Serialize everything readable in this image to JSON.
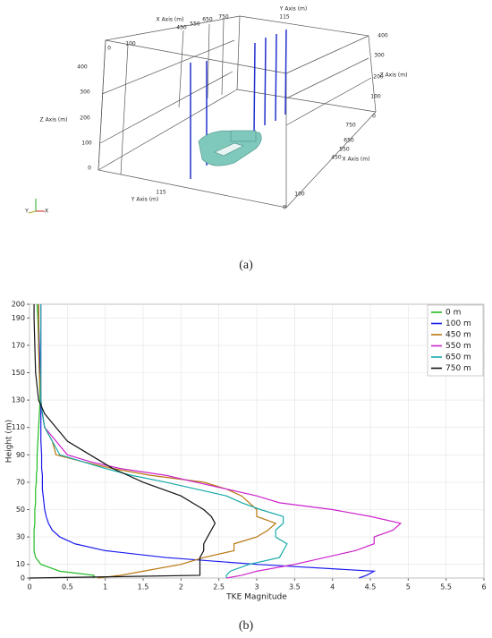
{
  "figure_a": {
    "caption": "(a)",
    "labels": [
      "Y Axis (m)",
      "115",
      "X Axis (m)",
      "450",
      "550",
      "650",
      "750",
      "0",
      "100",
      "400",
      "300",
      "Z Axis (m)",
      "200",
      "100",
      "0",
      "400",
      "300",
      "Z Axis (m)",
      "200",
      "100",
      "0",
      "750",
      "650",
      "550",
      "X Axis (m)",
      "450",
      "Y Axis (m)",
      "115",
      "100",
      "0",
      "Y",
      "X"
    ]
  },
  "chart_data": {
    "type": "line",
    "caption": "(b)",
    "x_label": "TKE Magnitude",
    "y_label": "Height (m)",
    "y": [
      0,
      2,
      5,
      10,
      15,
      20,
      25,
      30,
      35,
      40,
      45,
      50,
      55,
      60,
      65,
      70,
      75,
      80,
      85,
      90,
      100,
      110,
      120,
      130,
      150,
      170,
      190,
      200
    ],
    "series": [
      {
        "name": "0 m",
        "color": "#22bb22",
        "values": [
          0.85,
          0.85,
          0.4,
          0.15,
          0.08,
          0.06,
          0.06,
          0.06,
          0.06,
          0.07,
          0.07,
          0.07,
          0.08,
          0.08,
          0.08,
          0.09,
          0.09,
          0.1,
          0.1,
          0.1,
          0.11,
          0.12,
          0.13,
          0.14,
          0.13,
          0.12,
          0.11,
          0.1
        ]
      },
      {
        "name": "100 m",
        "color": "#1a1aee",
        "values": [
          4.35,
          4.45,
          4.55,
          3.0,
          1.8,
          1.0,
          0.6,
          0.4,
          0.3,
          0.25,
          0.22,
          0.2,
          0.19,
          0.18,
          0.17,
          0.17,
          0.17,
          0.16,
          0.16,
          0.16,
          0.15,
          0.15,
          0.15,
          0.15,
          0.14,
          0.13,
          0.12,
          0.12
        ]
      },
      {
        "name": "450 m",
        "color": "#b8760e",
        "values": [
          0.9,
          1.2,
          1.5,
          2.0,
          2.3,
          2.7,
          2.7,
          3.0,
          3.15,
          3.25,
          3.0,
          3.0,
          2.9,
          2.8,
          2.6,
          2.3,
          1.6,
          1.1,
          0.7,
          0.35,
          0.3,
          0.2,
          0.17,
          0.15,
          0.13,
          0.12,
          0.12,
          0.12
        ]
      },
      {
        "name": "550 m",
        "color": "#cc22cc",
        "values": [
          2.6,
          2.8,
          3.0,
          3.5,
          3.9,
          4.3,
          4.55,
          4.55,
          4.8,
          4.9,
          4.5,
          4.0,
          3.3,
          3.0,
          2.6,
          2.2,
          1.8,
          1.2,
          0.8,
          0.5,
          0.35,
          0.2,
          0.17,
          0.15,
          0.15,
          0.15,
          0.15,
          0.15
        ]
      },
      {
        "name": "650 m",
        "color": "#18aaaa",
        "values": [
          2.6,
          2.6,
          2.65,
          2.9,
          3.3,
          3.35,
          3.4,
          3.25,
          3.25,
          3.35,
          3.35,
          3.05,
          2.8,
          2.6,
          2.2,
          1.8,
          1.35,
          1.0,
          0.7,
          0.4,
          0.3,
          0.2,
          0.17,
          0.15,
          0.15,
          0.15,
          0.15,
          0.15
        ]
      },
      {
        "name": "750 m",
        "color": "#111111",
        "values": [
          0,
          2.25,
          2.25,
          2.25,
          2.25,
          2.3,
          2.3,
          2.35,
          2.4,
          2.45,
          2.4,
          2.3,
          2.15,
          2.0,
          1.75,
          1.5,
          1.3,
          1.1,
          0.95,
          0.8,
          0.5,
          0.35,
          0.2,
          0.12,
          0.08,
          0.07,
          0.06,
          0.06
        ]
      }
    ],
    "xlim": [
      0,
      6
    ],
    "xticks": [
      0,
      0.5,
      1,
      1.5,
      2,
      2.5,
      3,
      3.5,
      4,
      4.5,
      5,
      5.5,
      6
    ],
    "ylim": [
      0,
      200
    ],
    "yticks": [
      0,
      10,
      30,
      50,
      70,
      90,
      110,
      130,
      150,
      170,
      190,
      200
    ],
    "grid": true,
    "legend": "upper right"
  }
}
